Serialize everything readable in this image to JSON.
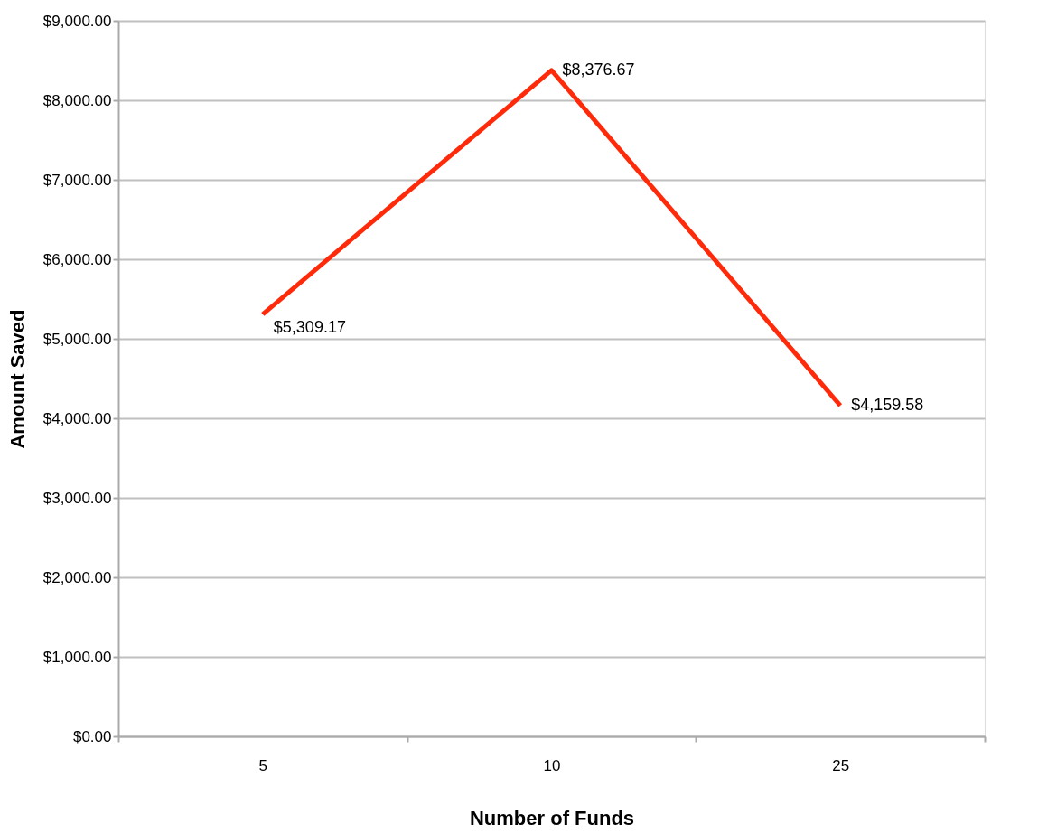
{
  "chart_data": {
    "type": "line",
    "xlabel": "Number of Funds",
    "ylabel": "Amount Saved",
    "categories": [
      "5",
      "10",
      "25"
    ],
    "series": [
      {
        "color": "#ff2a0a",
        "values": [
          5309.17,
          8376.67,
          4159.58
        ],
        "value_labels": [
          "$5,309.17",
          "$8,376.67",
          "$4,159.58"
        ]
      }
    ],
    "ylim": [
      0,
      9000
    ],
    "yticks": [
      {
        "value": 0,
        "label": "$0.00"
      },
      {
        "value": 1000,
        "label": "$1,000.00"
      },
      {
        "value": 2000,
        "label": "$2,000.00"
      },
      {
        "value": 3000,
        "label": "$3,000.00"
      },
      {
        "value": 4000,
        "label": "$4,000.00"
      },
      {
        "value": 5000,
        "label": "$5,000.00"
      },
      {
        "value": 6000,
        "label": "$6,000.00"
      },
      {
        "value": 7000,
        "label": "$7,000.00"
      },
      {
        "value": 8000,
        "label": "$8,000.00"
      },
      {
        "value": 9000,
        "label": "$9,000.00"
      }
    ],
    "grid": "y",
    "marker": "none",
    "line_style": "solid"
  }
}
